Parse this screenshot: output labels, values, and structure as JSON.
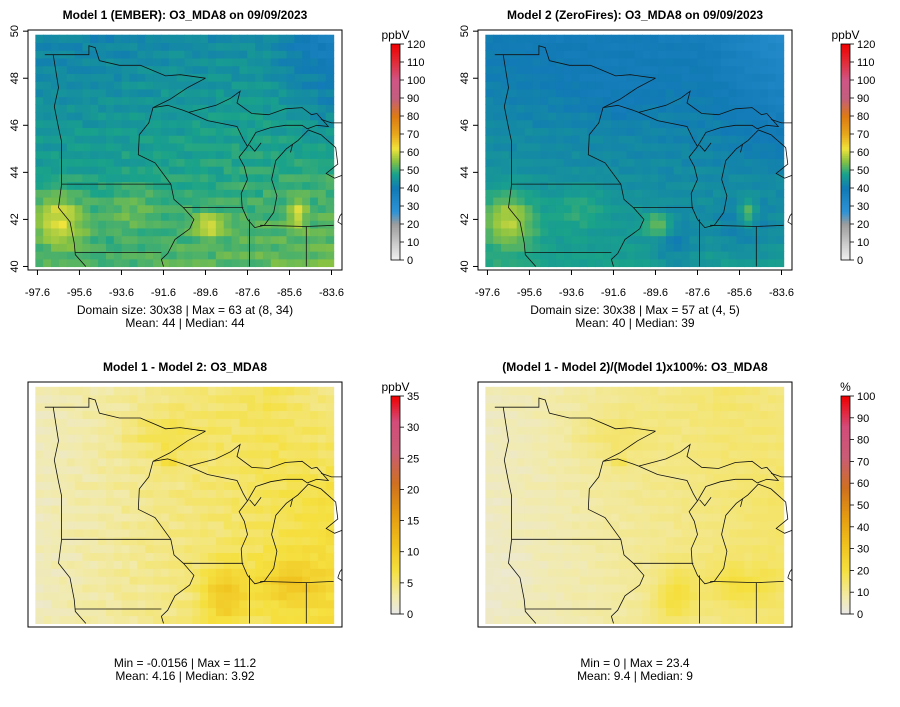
{
  "panels": [
    {
      "id": "p1",
      "title": "Model 1 (EMBER): O3_MDA8 on 09/09/2023",
      "field": "abs_ember",
      "show_axes": true,
      "colorbar": "abs",
      "stats_line1": "Domain size: 30x38 | Max = 63 at (8, 34)",
      "stats_line2": "Mean: 44 |  Median: 44"
    },
    {
      "id": "p2",
      "title": "Model 2 (ZeroFires): O3_MDA8 on 09/09/2023",
      "field": "abs_zero",
      "show_axes": true,
      "colorbar": "abs",
      "stats_line1": "Domain size: 30x38 | Max = 57 at (4, 5)",
      "stats_line2": "Mean: 40 |  Median: 39"
    },
    {
      "id": "p3",
      "title": "Model 1 - Model 2: O3_MDA8",
      "field": "diff",
      "show_axes": false,
      "colorbar": "diff",
      "stats_line1": "Min = -0.0156 | Max = 11.2",
      "stats_line2": "Mean: 4.16 |  Median: 3.92"
    },
    {
      "id": "p4",
      "title": "(Model 1 - Model 2)/(Model 1)x100%: O3_MDA8",
      "field": "pct",
      "show_axes": false,
      "colorbar": "pct",
      "stats_line1": "Min = 0 | Max = 23.4",
      "stats_line2": "Mean: 9.4 |  Median: 9"
    }
  ],
  "axes": {
    "x_ticks": [
      -97.6,
      -95.6,
      -93.6,
      -91.6,
      -89.6,
      -87.6,
      -85.6,
      -83.6
    ],
    "x_tick_labels": [
      "-97.6",
      "-95.6",
      "-93.6",
      "-91.6",
      "-89.6",
      "-87.6",
      "-85.6",
      "-83.6"
    ],
    "y_ticks": [
      40,
      42,
      44,
      46,
      48,
      50
    ],
    "y_tick_labels": [
      "40",
      "42",
      "44",
      "46",
      "48",
      "50"
    ],
    "x_range": [
      -98.05,
      -83.1
    ],
    "y_range": [
      39.85,
      50.05
    ]
  },
  "grid": {
    "nx": 38,
    "ny": 30,
    "lon_range": [
      -97.7,
      -83.5
    ],
    "lat_range": [
      40.0,
      49.85
    ]
  },
  "colorbars": {
    "abs": {
      "unit": "ppbV",
      "ticks": [
        0,
        10,
        20,
        30,
        40,
        50,
        60,
        70,
        80,
        90,
        100,
        110,
        120
      ],
      "tick_labels": [
        "0",
        "10",
        "20",
        "30",
        "40",
        "50",
        "60",
        "70",
        "80",
        "90",
        "100",
        "110",
        "120"
      ],
      "stops": [
        [
          0,
          "#f2f2f2"
        ],
        [
          20,
          "#9d9d9d"
        ],
        [
          27,
          "#2e93d6"
        ],
        [
          40,
          "#117ab5"
        ],
        [
          48,
          "#1aa38a"
        ],
        [
          55,
          "#88c242"
        ],
        [
          62,
          "#f0e33c"
        ],
        [
          70,
          "#e8a71c"
        ],
        [
          80,
          "#dd7a14"
        ],
        [
          90,
          "#c25e7e"
        ],
        [
          100,
          "#cf5586"
        ],
        [
          110,
          "#e12d3a"
        ],
        [
          120,
          "#f00000"
        ]
      ]
    },
    "diff": {
      "unit": "ppbV",
      "ticks": [
        0,
        5,
        10,
        15,
        20,
        25,
        30,
        35
      ],
      "tick_labels": [
        "0",
        "5",
        "10",
        "15",
        "20",
        "25",
        "30",
        "35"
      ],
      "stops": [
        [
          0,
          "#e8e8e8"
        ],
        [
          3,
          "#f2eaaa"
        ],
        [
          7,
          "#f5e040"
        ],
        [
          11,
          "#f0c21e"
        ],
        [
          16,
          "#e49a10"
        ],
        [
          21,
          "#cf7020"
        ],
        [
          26,
          "#c95c76"
        ],
        [
          31,
          "#d34b7a"
        ],
        [
          35,
          "#f00000"
        ]
      ]
    },
    "pct": {
      "unit": "%",
      "ticks": [
        0,
        10,
        20,
        30,
        40,
        50,
        60,
        70,
        80,
        90,
        100
      ],
      "tick_labels": [
        "0",
        "10",
        "20",
        "30",
        "40",
        "50",
        "60",
        "70",
        "80",
        "90",
        "100"
      ],
      "stops": [
        [
          0,
          "#e8e8e8"
        ],
        [
          8,
          "#f2eaaa"
        ],
        [
          20,
          "#f5e040"
        ],
        [
          32,
          "#f0c21e"
        ],
        [
          45,
          "#e49a10"
        ],
        [
          58,
          "#cf7020"
        ],
        [
          72,
          "#c95c76"
        ],
        [
          86,
          "#d34b7a"
        ],
        [
          100,
          "#f00000"
        ]
      ]
    }
  },
  "map_lines": {
    "state_borders": [
      [
        [
          -97.25,
          49.0
        ],
        [
          -95.15,
          49.0
        ],
        [
          -95.15,
          49.38
        ],
        [
          -94.85,
          49.3
        ],
        [
          -94.65,
          48.75
        ],
        [
          -93.7,
          48.55
        ],
        [
          -92.7,
          48.55
        ],
        [
          -91.5,
          48.1
        ],
        [
          -90.8,
          48.15
        ],
        [
          -89.6,
          48.0
        ]
      ],
      [
        [
          -96.85,
          49.0
        ],
        [
          -96.6,
          47.6
        ],
        [
          -96.8,
          46.8
        ],
        [
          -96.6,
          45.9
        ],
        [
          -96.45,
          45.3
        ],
        [
          -96.45,
          43.5
        ],
        [
          -96.6,
          42.5
        ],
        [
          -96.05,
          41.9
        ],
        [
          -95.85,
          41.0
        ],
        [
          -95.8,
          40.5
        ],
        [
          -95.3,
          40.0
        ]
      ],
      [
        [
          -96.45,
          43.5
        ],
        [
          -91.25,
          43.5
        ]
      ],
      [
        [
          -92.1,
          46.75
        ],
        [
          -92.3,
          46.1
        ],
        [
          -92.75,
          45.6
        ],
        [
          -92.8,
          44.75
        ],
        [
          -92.0,
          44.4
        ],
        [
          -91.25,
          43.5
        ]
      ],
      [
        [
          -91.25,
          43.5
        ],
        [
          -91.1,
          42.85
        ],
        [
          -90.65,
          42.5
        ],
        [
          -90.15,
          42.0
        ],
        [
          -90.35,
          41.6
        ],
        [
          -91.05,
          41.15
        ],
        [
          -91.4,
          40.55
        ],
        [
          -91.7,
          40.3
        ],
        [
          -91.6,
          40.0
        ]
      ],
      [
        [
          -95.8,
          40.6
        ],
        [
          -91.7,
          40.6
        ]
      ],
      [
        [
          -90.65,
          42.5
        ],
        [
          -87.8,
          42.5
        ]
      ],
      [
        [
          -87.5,
          42.0
        ],
        [
          -87.5,
          40.0
        ]
      ],
      [
        [
          -87.0,
          41.75
        ],
        [
          -84.8,
          41.7
        ],
        [
          -83.5,
          41.75
        ]
      ],
      [
        [
          -84.8,
          41.7
        ],
        [
          -84.8,
          40.0
        ]
      ],
      [
        [
          -90.4,
          46.55
        ],
        [
          -89.5,
          46.2
        ],
        [
          -88.1,
          45.95
        ],
        [
          -87.8,
          45.4
        ],
        [
          -87.6,
          45.1
        ]
      ]
    ],
    "coastlines": [
      [
        [
          -92.1,
          46.75
        ],
        [
          -91.3,
          47.1
        ],
        [
          -90.45,
          47.6
        ],
        [
          -89.6,
          48.0
        ]
      ],
      [
        [
          -92.1,
          46.75
        ],
        [
          -91.4,
          46.85
        ],
        [
          -90.7,
          46.65
        ],
        [
          -90.4,
          46.55
        ]
      ],
      [
        [
          -90.4,
          46.55
        ],
        [
          -89.1,
          46.85
        ],
        [
          -88.4,
          47.15
        ],
        [
          -87.95,
          47.45
        ],
        [
          -88.1,
          46.95
        ],
        [
          -87.4,
          46.5
        ],
        [
          -86.6,
          46.45
        ],
        [
          -85.8,
          46.7
        ],
        [
          -85.0,
          46.75
        ],
        [
          -84.55,
          46.45
        ],
        [
          -84.3,
          46.5
        ]
      ],
      [
        [
          -87.6,
          45.1
        ],
        [
          -87.2,
          45.7
        ],
        [
          -86.5,
          45.9
        ],
        [
          -85.8,
          46.0
        ],
        [
          -85.0,
          46.0
        ],
        [
          -84.75,
          45.85
        ],
        [
          -84.3,
          46.0
        ],
        [
          -83.75,
          45.95
        ],
        [
          -84.3,
          46.5
        ]
      ],
      [
        [
          -87.6,
          45.1
        ],
        [
          -88.0,
          44.65
        ],
        [
          -87.75,
          44.25
        ],
        [
          -87.6,
          43.7
        ],
        [
          -87.9,
          43.1
        ],
        [
          -87.85,
          42.5
        ],
        [
          -87.6,
          42.0
        ],
        [
          -87.25,
          41.65
        ],
        [
          -86.8,
          41.75
        ],
        [
          -86.35,
          42.3
        ],
        [
          -86.2,
          43.0
        ],
        [
          -86.45,
          43.7
        ],
        [
          -86.25,
          44.5
        ],
        [
          -85.75,
          45.0
        ],
        [
          -85.2,
          45.35
        ],
        [
          -84.7,
          45.8
        ],
        [
          -84.1,
          45.6
        ],
        [
          -83.4,
          45.05
        ],
        [
          -83.3,
          44.35
        ],
        [
          -83.85,
          43.95
        ],
        [
          -83.45,
          43.75
        ],
        [
          -82.75,
          44.0
        ],
        [
          -82.45,
          43.1
        ],
        [
          -82.85,
          42.55
        ],
        [
          -83.2,
          42.15
        ],
        [
          -83.3,
          41.9
        ]
      ],
      [
        [
          -87.5,
          45.15
        ],
        [
          -87.25,
          44.9
        ],
        [
          -86.95,
          45.25
        ]
      ],
      [
        [
          -85.55,
          44.85
        ],
        [
          -85.45,
          45.2
        ]
      ],
      [
        [
          -83.3,
          41.9
        ],
        [
          -82.9,
          41.65
        ],
        [
          -82.4,
          41.55
        ],
        [
          -81.8,
          41.5
        ],
        [
          -81.2,
          41.8
        ]
      ],
      [
        [
          -83.0,
          42.3
        ],
        [
          -82.45,
          42.05
        ],
        [
          -81.85,
          42.25
        ],
        [
          -81.25,
          42.6
        ]
      ],
      [
        [
          -82.45,
          43.1
        ],
        [
          -81.75,
          43.6
        ],
        [
          -81.65,
          44.4
        ],
        [
          -81.3,
          45.1
        ],
        [
          -81.6,
          45.25
        ],
        [
          -80.9,
          45.35
        ],
        [
          -80.25,
          44.7
        ]
      ],
      [
        [
          -84.1,
          46.25
        ],
        [
          -83.6,
          46.1
        ],
        [
          -83.0,
          46.1
        ],
        [
          -82.2,
          46.0
        ],
        [
          -81.5,
          45.95
        ],
        [
          -81.1,
          46.1
        ]
      ]
    ]
  }
}
